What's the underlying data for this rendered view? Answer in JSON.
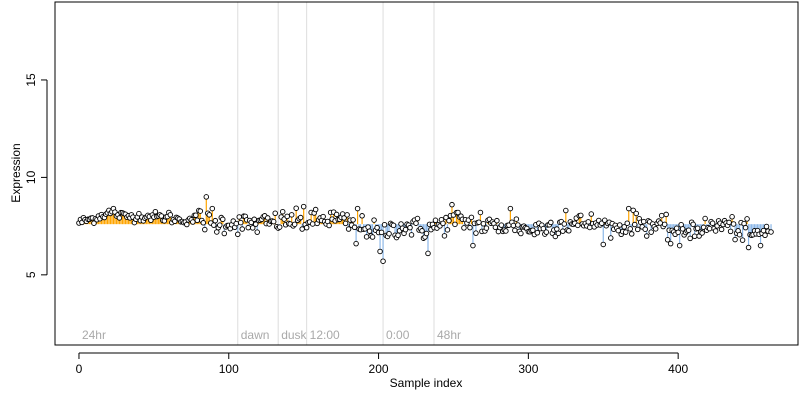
{
  "chart_data": {
    "type": "scatter",
    "title": "",
    "xlabel": "Sample index",
    "ylabel": "Expression",
    "xlim": [
      -16,
      480
    ],
    "ylim": [
      1.4,
      19
    ],
    "x_ticks": [
      0,
      100,
      200,
      300,
      400
    ],
    "y_ticks": [
      5,
      10,
      15
    ],
    "baseline": 7.6,
    "grid": false,
    "colors": {
      "above": "#ffa500",
      "below": "#8db8e8",
      "marker_edge": "#000000",
      "marker_fill": "#ffffff",
      "annotation_line": "#dddddd",
      "annotation_text": "#a9a9a9"
    },
    "annotations": [
      {
        "x": 0,
        "label": "24hr",
        "line": false
      },
      {
        "x": 106,
        "label": "dawn",
        "line": true
      },
      {
        "x": 133,
        "label": "dusk",
        "line": true
      },
      {
        "x": 152,
        "label": "12:00",
        "line": true
      },
      {
        "x": 203,
        "label": "0:00",
        "line": true
      },
      {
        "x": 237,
        "label": "48hr",
        "line": true
      }
    ],
    "anchors": [
      [
        0,
        7.7
      ],
      [
        10,
        7.9
      ],
      [
        20,
        8.2
      ],
      [
        30,
        8.0
      ],
      [
        40,
        8.0
      ],
      [
        50,
        8.0
      ],
      [
        60,
        7.9
      ],
      [
        70,
        7.8
      ],
      [
        80,
        7.9
      ],
      [
        90,
        7.6
      ],
      [
        100,
        7.7
      ],
      [
        110,
        7.6
      ],
      [
        120,
        7.6
      ],
      [
        130,
        7.7
      ],
      [
        140,
        7.8
      ],
      [
        150,
        7.7
      ],
      [
        160,
        7.8
      ],
      [
        170,
        7.9
      ],
      [
        180,
        7.6
      ],
      [
        190,
        7.5
      ],
      [
        200,
        7.1
      ],
      [
        210,
        7.4
      ],
      [
        220,
        7.5
      ],
      [
        230,
        7.3
      ],
      [
        240,
        7.5
      ],
      [
        250,
        7.8
      ],
      [
        260,
        7.7
      ],
      [
        270,
        7.5
      ],
      [
        280,
        7.5
      ],
      [
        290,
        7.6
      ],
      [
        300,
        7.3
      ],
      [
        310,
        7.4
      ],
      [
        320,
        7.6
      ],
      [
        330,
        7.6
      ],
      [
        340,
        7.7
      ],
      [
        350,
        7.5
      ],
      [
        360,
        7.4
      ],
      [
        370,
        7.7
      ],
      [
        380,
        7.6
      ],
      [
        390,
        7.4
      ],
      [
        400,
        7.2
      ],
      [
        410,
        7.4
      ],
      [
        420,
        7.4
      ],
      [
        430,
        7.6
      ],
      [
        440,
        7.3
      ],
      [
        450,
        7.0
      ],
      [
        460,
        7.3
      ]
    ],
    "noise": 0.27,
    "seed": 12345,
    "n_points": 461,
    "extremes": [
      [
        85,
        9.0
      ],
      [
        89,
        8.4
      ],
      [
        150,
        8.5
      ],
      [
        155,
        8.2
      ],
      [
        203,
        5.7
      ],
      [
        201,
        6.2
      ],
      [
        233,
        6.1
      ],
      [
        249,
        8.6
      ],
      [
        253,
        8.2
      ],
      [
        288,
        8.4
      ],
      [
        325,
        8.3
      ],
      [
        367,
        8.4
      ],
      [
        395,
        6.6
      ],
      [
        401,
        6.5
      ],
      [
        447,
        6.4
      ],
      [
        455,
        6.5
      ],
      [
        462,
        7.2
      ],
      [
        185,
        6.6
      ],
      [
        263,
        6.5
      ],
      [
        268,
        8.2
      ],
      [
        186,
        8.4
      ],
      [
        60,
        8.2
      ],
      [
        23,
        8.4
      ]
    ]
  }
}
